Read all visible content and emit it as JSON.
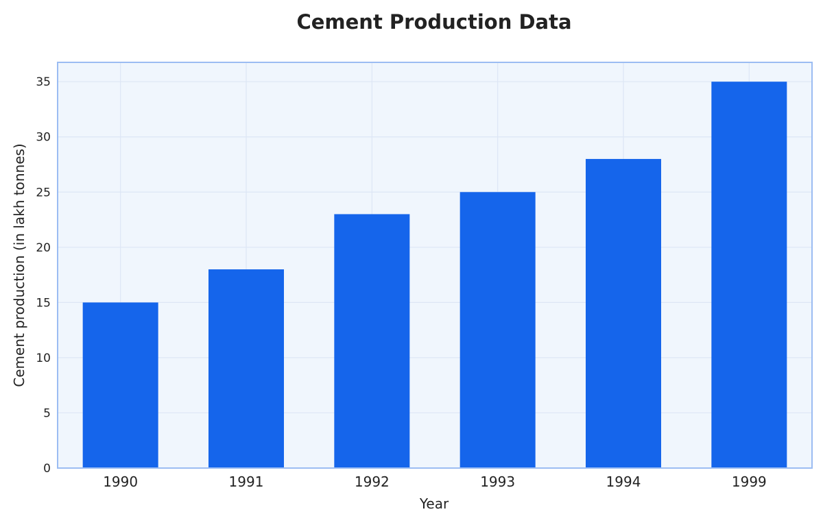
{
  "chart_data": {
    "type": "bar",
    "title": "Cement Production Data",
    "xlabel": "Year",
    "ylabel": "Cement production (in lakh tonnes)",
    "categories": [
      "1990",
      "1991",
      "1992",
      "1993",
      "1994",
      "1999"
    ],
    "values": [
      15,
      18,
      23,
      25,
      28,
      35
    ],
    "ylim": [
      0,
      36.75
    ],
    "yticks": [
      0,
      5,
      10,
      15,
      20,
      25,
      30,
      35
    ],
    "grid": true,
    "legend": "none",
    "colors": {
      "bar": "#1565eb",
      "plot_background": "#f0f6fd",
      "plot_border": "#9bbcf2",
      "grid": "#dde6f5"
    }
  }
}
